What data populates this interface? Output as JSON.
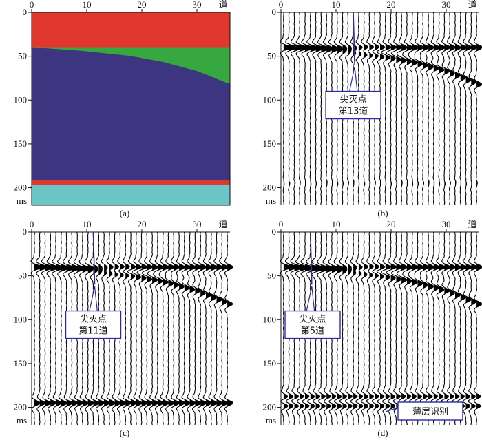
{
  "figure": {
    "axis_unit_x": "道",
    "axis_unit_y": "ms"
  },
  "chart_data": [
    {
      "id": "a",
      "type": "area",
      "caption": "(a)",
      "xlim": [
        0,
        36
      ],
      "ylim": [
        0,
        220
      ],
      "xticks": [
        0,
        10,
        20,
        30
      ],
      "yticks": [
        0,
        50,
        100,
        150,
        200
      ],
      "xlabel": "道",
      "ylabel": "ms",
      "layers": [
        {
          "name": "top-layer",
          "color": "#e0382f",
          "top": [
            [
              0,
              0
            ],
            [
              36,
              0
            ]
          ],
          "bottom": [
            [
              0,
              40
            ],
            [
              36,
              40
            ]
          ]
        },
        {
          "name": "wedge",
          "color": "#36a83f",
          "top": [
            [
              0,
              40
            ],
            [
              36,
              40
            ]
          ],
          "bottom": [
            [
              0,
              40
            ],
            [
              9,
              44
            ],
            [
              18,
              50
            ],
            [
              24,
              57
            ],
            [
              30,
              67
            ],
            [
              36,
              82
            ]
          ]
        },
        {
          "name": "thick-layer",
          "color": "#3e3580",
          "top": [
            [
              0,
              40
            ],
            [
              9,
              44
            ],
            [
              18,
              50
            ],
            [
              24,
              57
            ],
            [
              30,
              67
            ],
            [
              36,
              82
            ]
          ],
          "bottom": [
            [
              0,
              192
            ],
            [
              36,
              192
            ]
          ]
        },
        {
          "name": "thin-bed",
          "color": "#e0382f",
          "top": [
            [
              0,
              192
            ],
            [
              36,
              192
            ]
          ],
          "bottom": [
            [
              0,
              197
            ],
            [
              36,
              197
            ]
          ]
        },
        {
          "name": "basement",
          "color": "#6cc6c8",
          "top": [
            [
              0,
              197
            ],
            [
              36,
              197
            ]
          ],
          "bottom": [
            [
              0,
              220
            ],
            [
              36,
              220
            ]
          ]
        }
      ]
    },
    {
      "id": "b",
      "type": "wiggle",
      "caption": "(b)",
      "xlim": [
        0,
        36
      ],
      "ylim": [
        0,
        220
      ],
      "xticks": [
        0,
        10,
        20,
        30
      ],
      "yticks": [
        0,
        50,
        100,
        150,
        200
      ],
      "xlabel": "道",
      "ylabel": "ms",
      "traces": 37,
      "events": [
        {
          "name": "top-reflector",
          "time_ms": 40,
          "amp": 1.0
        },
        {
          "name": "dipping-reflector",
          "time_ms_by_trace": [
            [
              0,
              40
            ],
            [
              9,
              44
            ],
            [
              18,
              50
            ],
            [
              24,
              57
            ],
            [
              30,
              67
            ],
            [
              36,
              82
            ]
          ],
          "amp": 0.9
        },
        {
          "name": "thin-bed-reflector",
          "time_ms": 195,
          "amp": 0.12
        }
      ],
      "pinchout_trace": 13,
      "callout": {
        "line1": "尖灭点",
        "line2": "第13道"
      }
    },
    {
      "id": "c",
      "type": "wiggle",
      "caption": "(c)",
      "xlim": [
        0,
        36
      ],
      "ylim": [
        0,
        220
      ],
      "xticks": [
        0,
        10,
        20,
        30
      ],
      "yticks": [
        0,
        50,
        100,
        150,
        200
      ],
      "xlabel": "道",
      "ylabel": "ms",
      "traces": 37,
      "events": [
        {
          "name": "top-reflector",
          "time_ms": 40,
          "amp": 1.0
        },
        {
          "name": "dipping-reflector",
          "time_ms_by_trace": [
            [
              0,
              40
            ],
            [
              9,
              44
            ],
            [
              18,
              50
            ],
            [
              24,
              57
            ],
            [
              30,
              67
            ],
            [
              36,
              82
            ]
          ],
          "amp": 0.9
        },
        {
          "name": "thin-bed-reflector",
          "time_ms": 195,
          "amp": 1.0
        }
      ],
      "pinchout_trace": 11,
      "callout": {
        "line1": "尖灭点",
        "line2": "第11道"
      }
    },
    {
      "id": "d",
      "type": "wiggle",
      "caption": "(d)",
      "xlim": [
        0,
        36
      ],
      "ylim": [
        0,
        220
      ],
      "xticks": [
        0,
        10,
        20,
        30
      ],
      "yticks": [
        0,
        50,
        100,
        150,
        200
      ],
      "xlabel": "道",
      "ylabel": "ms",
      "traces": 37,
      "events": [
        {
          "name": "top-reflector",
          "time_ms": 40,
          "amp": 1.0
        },
        {
          "name": "dipping-reflector",
          "time_ms_by_trace": [
            [
              0,
              40
            ],
            [
              9,
              44
            ],
            [
              18,
              50
            ],
            [
              24,
              57
            ],
            [
              30,
              67
            ],
            [
              36,
              82
            ]
          ],
          "amp": 0.9
        },
        {
          "name": "thin-bed-reflector-upper",
          "time_ms": 188,
          "amp": 0.9
        },
        {
          "name": "thin-bed-reflector-lower",
          "time_ms": 198,
          "amp": 0.9
        }
      ],
      "pinchout_trace": 5,
      "callout": {
        "line1": "尖灭点",
        "line2": "第5道"
      },
      "thinbed_callout": "薄层识别"
    }
  ]
}
